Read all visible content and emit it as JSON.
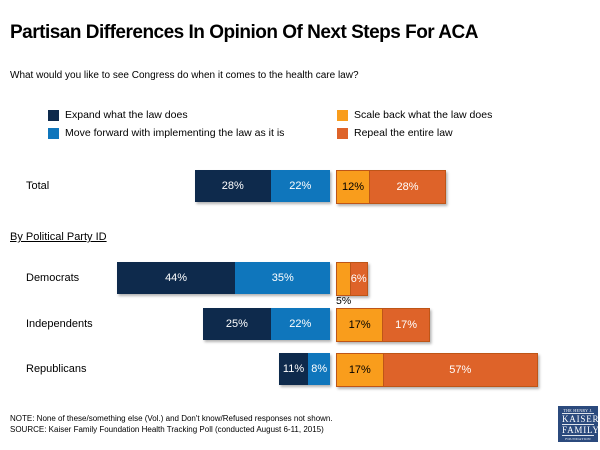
{
  "title": "Partisan Differences In Opinion Of Next Steps For ACA",
  "subtitle": "What would you like to see Congress do when it comes to the health care law?",
  "group_label": "By Political Party ID",
  "notes": {
    "note": "NOTE: None of these/something else (Vol.) and Don't know/Refused responses not shown.",
    "source": "SOURCE: Kaiser Family Foundation Health Tracking Poll (conducted August 6-11, 2015)"
  },
  "logo": {
    "top": "THE HENRY J.",
    "kaiser": "KAISER",
    "family": "FAMILY",
    "bottom": "FOUNDATION",
    "bg_color": "#2B4A7D"
  },
  "chart_data": {
    "type": "bar",
    "orientation": "horizontal",
    "stacked": true,
    "split": "left group (expand / move forward) right-aligned to a center gap; right group (scale back / repeal) left-aligned after the gap",
    "unit": "%",
    "axis": "none (value labels shown on segments)",
    "legend_position": "top, two columns",
    "categories": [
      "Total",
      "Democrats",
      "Independents",
      "Republicans"
    ],
    "series": [
      {
        "name": "Expand what the law does",
        "color": "#0E2A4C",
        "label_color": "#FFFFFF",
        "values": [
          28,
          44,
          25,
          11
        ]
      },
      {
        "name": "Move forward with implementing the law as it is",
        "color": "#0F76BC",
        "label_color": "#FFFFFF",
        "values": [
          22,
          35,
          22,
          8
        ]
      },
      {
        "name": "Scale back what the law does",
        "color": "#F99D1C",
        "label_color": "#000000",
        "values": [
          12,
          5,
          17,
          17
        ]
      },
      {
        "name": "Repeal the entire law",
        "color": "#DE6329",
        "label_color": "#FFFFFF",
        "values": [
          28,
          6,
          17,
          57
        ]
      }
    ],
    "value_label_note": "Democrats' 5% (scale back) segment too small; its label is drawn below the bar"
  }
}
